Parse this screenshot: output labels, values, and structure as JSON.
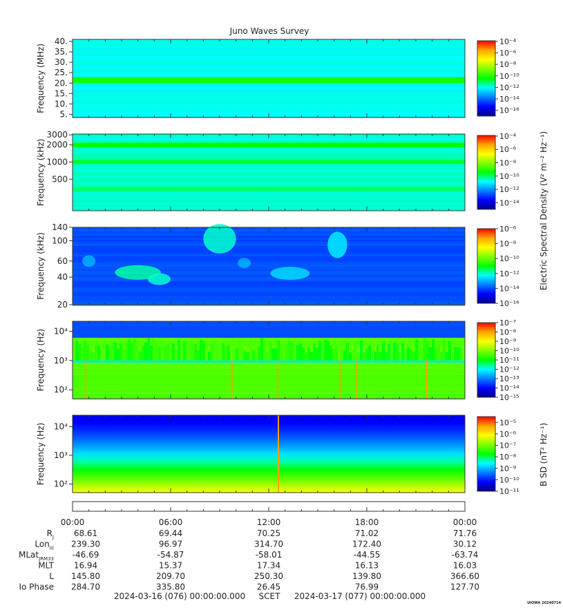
{
  "title": "Juno Waves Survey",
  "credit": "UIOWA 20240714",
  "colors": {
    "cmap": [
      "#00008b",
      "#0000ff",
      "#0080ff",
      "#00ffff",
      "#00ff00",
      "#80ff00",
      "#ffff00",
      "#ffa500",
      "#ff0000"
    ]
  },
  "shared_labels": {
    "electric": "Electric Spectral Density (V² m⁻² Hz⁻¹)",
    "magnetic": "B SD (nT² Hz⁻¹)"
  },
  "chart_data": [
    {
      "type": "heatmap",
      "title": "Juno Waves Survey",
      "ylabel": "Frequency (MHz)",
      "ylim": [
        3.5,
        41
      ],
      "yscale": "linear",
      "yticks": [
        5,
        10,
        15,
        20,
        25,
        30,
        35,
        40
      ],
      "yticklabels": [
        "5.",
        "10.",
        "15.",
        "20.",
        "25.",
        "30.",
        "35.",
        "40."
      ],
      "colorbar": {
        "scale": "log",
        "range": [
          -17,
          -3.9
        ],
        "ticks": [
          -4,
          -6,
          -8,
          -10,
          -12,
          -14,
          -16
        ]
      },
      "base_level": 0.38,
      "bands": [
        {
          "y": 21.5,
          "width": 0.9,
          "level": 0.52
        }
      ]
    },
    {
      "type": "heatmap",
      "ylabel": "Frequency (kHz)",
      "ylim": [
        140,
        3100
      ],
      "yscale": "log",
      "yticks": [
        500,
        1000,
        2000,
        3000
      ],
      "yticklabels": [
        "500",
        "1000",
        "2000",
        "3000"
      ],
      "colorbar": {
        "scale": "log",
        "range": [
          -15,
          -3.9
        ],
        "ticks": [
          -4,
          -6,
          -8,
          -10,
          -12,
          -14
        ]
      },
      "base_level": 0.4,
      "bands": [
        {
          "y": 2000,
          "width": 0.05,
          "level": 0.5
        },
        {
          "y": 1000,
          "width": 0.04,
          "level": 0.48
        },
        {
          "y": 330,
          "width": 0.03,
          "level": 0.45
        }
      ]
    },
    {
      "type": "heatmap",
      "ylabel": "Frequency (kHz)",
      "ylim": [
        20,
        140
      ],
      "yscale": "log",
      "yticks": [
        20,
        40,
        60,
        100,
        140
      ],
      "yticklabels": [
        "20",
        "40",
        "60",
        "100",
        "140"
      ],
      "colorbar": {
        "scale": "log",
        "range": [
          -16,
          -6
        ],
        "ticks": [
          -6,
          -8,
          -10,
          -12,
          -14,
          -16
        ]
      },
      "base_level": 0.2,
      "blobs": [
        {
          "t": 4.0,
          "f": 45,
          "dt": 1.4,
          "df": 0.12,
          "level": 0.42
        },
        {
          "t": 5.3,
          "f": 38,
          "dt": 0.7,
          "df": 0.08,
          "level": 0.4
        },
        {
          "t": 1.0,
          "f": 60,
          "dt": 0.4,
          "df": 0.08,
          "level": 0.3
        },
        {
          "t": 13.3,
          "f": 44,
          "dt": 1.2,
          "df": 0.1,
          "level": 0.34
        },
        {
          "t": 10.5,
          "f": 57,
          "dt": 0.4,
          "df": 0.06,
          "level": 0.3
        },
        {
          "t": 9.0,
          "f": 105,
          "dt": 1.0,
          "df": 0.35,
          "level": 0.4
        },
        {
          "t": 16.2,
          "f": 90,
          "dt": 0.6,
          "df": 0.3,
          "level": 0.36
        }
      ]
    },
    {
      "type": "heatmap",
      "ylabel": "Frequency (Hz)",
      "ylim": [
        50,
        22000
      ],
      "yscale": "log",
      "yticks": [
        100,
        1000,
        10000
      ],
      "yticklabels": [
        "10²",
        "10³",
        "10⁴"
      ],
      "colorbar": {
        "scale": "log",
        "range": [
          -15,
          -7
        ],
        "ticks": [
          -7,
          -8,
          -9,
          -10,
          -11,
          -12,
          -13,
          -14,
          -15
        ]
      },
      "base_level": 0.58,
      "edge_hz": 1000,
      "upper_level": 0.2,
      "upper_hz": 6000,
      "spikes": [
        0.75,
        9.7,
        12.5,
        16.3,
        17.3,
        21.6
      ]
    },
    {
      "type": "heatmap",
      "ylabel": "Frequency (Hz)",
      "ylim": [
        50,
        25000
      ],
      "yscale": "log",
      "yticks": [
        100,
        1000,
        10000
      ],
      "yticklabels": [
        "10²",
        "10³",
        "10⁴"
      ],
      "colorbar": {
        "scale": "log",
        "range": [
          -11,
          -4.5
        ],
        "ticks": [
          -5,
          -6,
          -7,
          -8,
          -9,
          -10,
          -11
        ]
      },
      "bottom_level": 0.75,
      "top_level": 0.1,
      "spikes": [
        12.55
      ]
    }
  ],
  "axis": {
    "time_labels": [
      "00:00",
      "06:00",
      "12:00",
      "18:00",
      "00:00"
    ],
    "rows": [
      {
        "label": "R",
        "sub": "J",
        "values": [
          "68.61",
          "69.44",
          "70.25",
          "71.02",
          "71.76"
        ]
      },
      {
        "label": "Lon",
        "sub": "III",
        "values": [
          "239.30",
          "96.97",
          "314.70",
          "172.40",
          "30.12"
        ]
      },
      {
        "label": "MLat",
        "sub": "JRM33",
        "values": [
          "-46.69",
          "-54.87",
          "-58.01",
          "-44.55",
          "-63.74"
        ]
      },
      {
        "label": "MLT",
        "sub": "",
        "values": [
          "16.94",
          "15.37",
          "17.34",
          "16.13",
          "16.03"
        ]
      },
      {
        "label": "L",
        "sub": "",
        "values": [
          "145.80",
          "209.70",
          "250.30",
          "139.80",
          "366.60"
        ]
      },
      {
        "label": "Io Phase",
        "sub": "",
        "values": [
          "284.70",
          "335.80",
          "26.45",
          "76.99",
          "127.70"
        ]
      }
    ],
    "start": "2024-03-16 (076) 00:00:00.000",
    "scet": "SCET",
    "end": "2024-03-17 (077) 00:00:00.000"
  }
}
